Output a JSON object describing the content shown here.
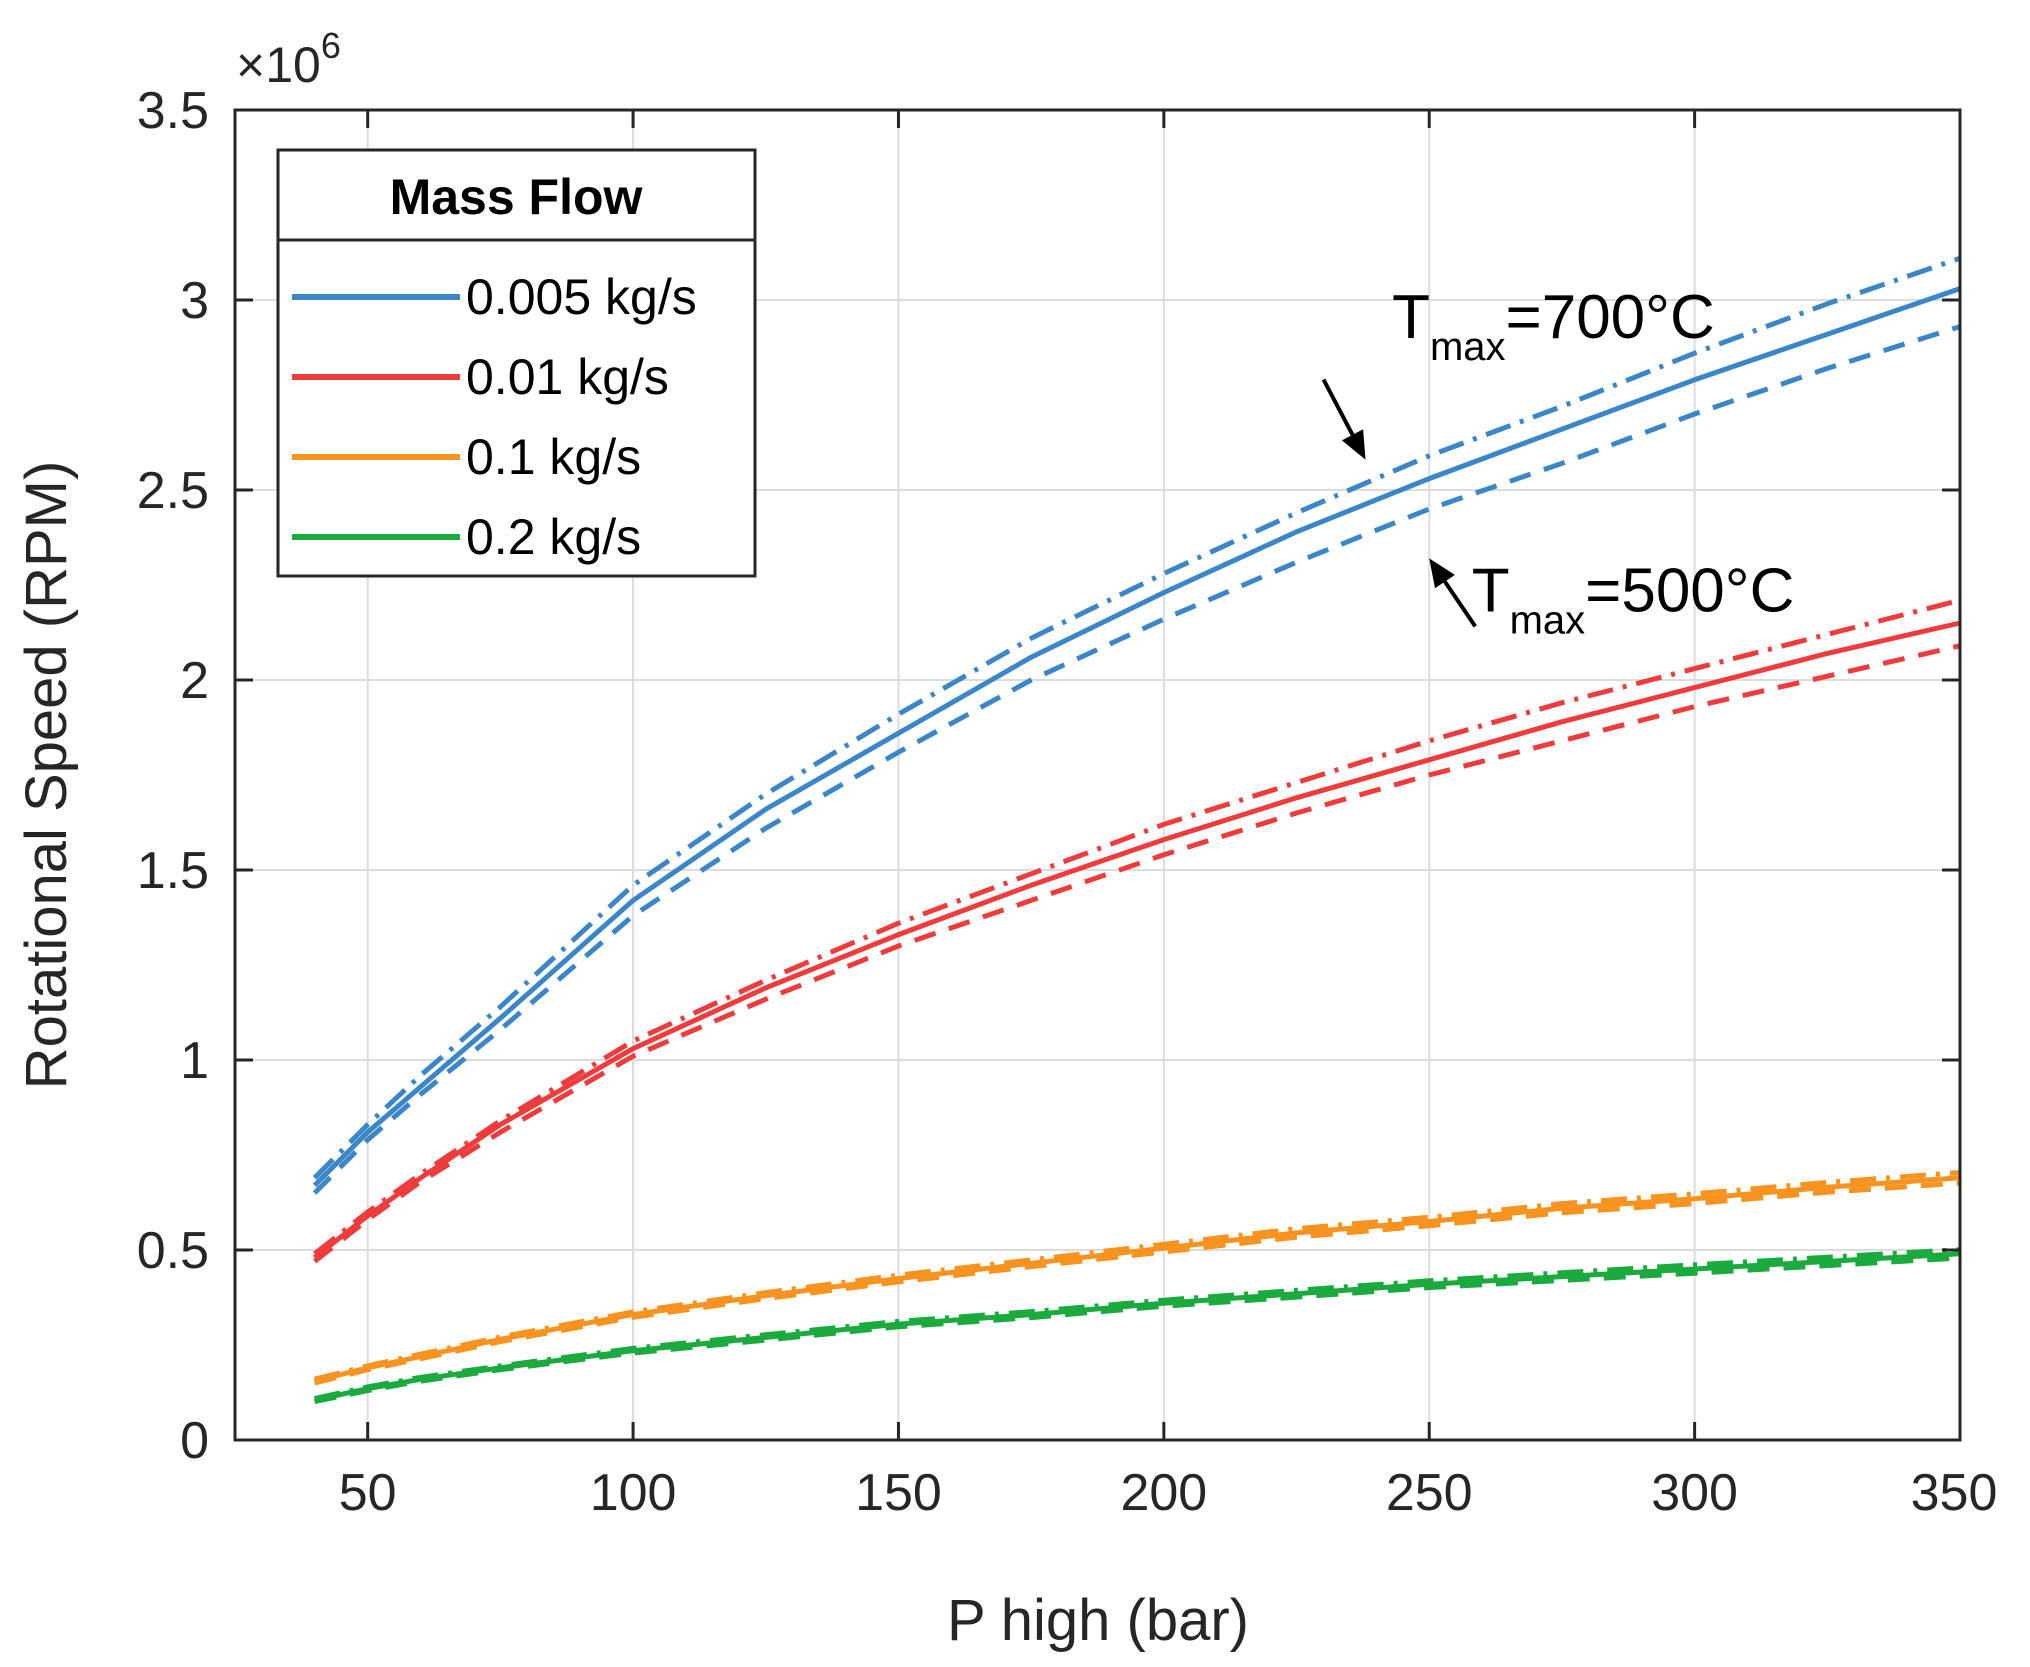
{
  "chart_data": {
    "type": "line",
    "title": "",
    "xlabel": "P high (bar)",
    "ylabel": "Rotational Speed (RPM)",
    "xlim": [
      25,
      350
    ],
    "ylim": [
      0,
      3500000
    ],
    "xticks": [
      50,
      100,
      150,
      200,
      250,
      300,
      350
    ],
    "yticks": [
      0,
      500000,
      1000000,
      1500000,
      2000000,
      2500000,
      3000000,
      3500000
    ],
    "ytick_labels": [
      "0",
      "0.5",
      "1",
      "1.5",
      "2",
      "2.5",
      "3",
      "3.5"
    ],
    "y_multiplier": {
      "base": "×10",
      "exponent": "6"
    },
    "grid": true,
    "legend": {
      "title": "Mass Flow",
      "position": "top-left",
      "entries": [
        "0.005 kg/s",
        "0.01 kg/s",
        "0.1 kg/s",
        "0.2 kg/s"
      ]
    },
    "line_styles": [
      "solid (reference)",
      "dash-dot (Tmax=700°C)",
      "dashed (Tmax=500°C)"
    ],
    "colors": [
      "#3a86c8",
      "#ee3b3b",
      "#f7931e",
      "#1aaa3e"
    ],
    "x": [
      40,
      50,
      60,
      75,
      100,
      125,
      150,
      175,
      200,
      225,
      250,
      275,
      300,
      325,
      350
    ],
    "series": [
      {
        "name": "0.005 kg/s",
        "style": "solid",
        "values": [
          670000,
          810000,
          930000,
          1110000,
          1420000,
          1660000,
          1860000,
          2060000,
          2230000,
          2390000,
          2530000,
          2660000,
          2790000,
          2910000,
          3030000
        ]
      },
      {
        "name": "0.005 kg/s",
        "style": "dashdot",
        "values": [
          690000,
          830000,
          960000,
          1140000,
          1460000,
          1700000,
          1910000,
          2110000,
          2280000,
          2440000,
          2590000,
          2720000,
          2860000,
          2990000,
          3110000
        ]
      },
      {
        "name": "0.005 kg/s",
        "style": "dashed",
        "values": [
          650000,
          790000,
          910000,
          1080000,
          1380000,
          1610000,
          1810000,
          2000000,
          2160000,
          2310000,
          2450000,
          2570000,
          2700000,
          2820000,
          2930000
        ]
      },
      {
        "name": "0.01 kg/s",
        "style": "solid",
        "values": [
          480000,
          590000,
          690000,
          830000,
          1030000,
          1190000,
          1330000,
          1460000,
          1580000,
          1690000,
          1790000,
          1890000,
          1980000,
          2070000,
          2150000
        ]
      },
      {
        "name": "0.01 kg/s",
        "style": "dashdot",
        "values": [
          490000,
          600000,
          700000,
          840000,
          1050000,
          1210000,
          1360000,
          1490000,
          1620000,
          1730000,
          1840000,
          1940000,
          2030000,
          2120000,
          2210000
        ]
      },
      {
        "name": "0.01 kg/s",
        "style": "dashed",
        "values": [
          470000,
          580000,
          680000,
          810000,
          1010000,
          1160000,
          1300000,
          1420000,
          1540000,
          1650000,
          1750000,
          1840000,
          1930000,
          2010000,
          2090000
        ]
      },
      {
        "name": "0.1 kg/s",
        "style": "solid",
        "values": [
          155000,
          190000,
          220000,
          265000,
          330000,
          380000,
          425000,
          465000,
          505000,
          545000,
          575000,
          610000,
          635000,
          665000,
          690000
        ]
      },
      {
        "name": "0.1 kg/s",
        "style": "dashdot",
        "values": [
          160000,
          195000,
          226000,
          271000,
          337000,
          388000,
          434000,
          474000,
          515000,
          556000,
          586000,
          622000,
          648000,
          678000,
          704000
        ]
      },
      {
        "name": "0.1 kg/s",
        "style": "dashed",
        "values": [
          150000,
          185000,
          214000,
          259000,
          323000,
          372000,
          416000,
          456000,
          495000,
          534000,
          564000,
          598000,
          622000,
          652000,
          676000
        ]
      },
      {
        "name": "0.2 kg/s",
        "style": "solid",
        "values": [
          105000,
          135000,
          160000,
          190000,
          235000,
          270000,
          305000,
          330000,
          360000,
          385000,
          410000,
          430000,
          450000,
          470000,
          490000
        ]
      },
      {
        "name": "0.2 kg/s",
        "style": "dashdot",
        "values": [
          109000,
          140000,
          165000,
          195000,
          241000,
          277000,
          312000,
          338000,
          368000,
          394000,
          419000,
          440000,
          461000,
          481000,
          501000
        ]
      },
      {
        "name": "0.2 kg/s",
        "style": "dashed",
        "values": [
          101000,
          130000,
          155000,
          185000,
          229000,
          263000,
          298000,
          322000,
          352000,
          376000,
          401000,
          420000,
          439000,
          459000,
          479000
        ]
      }
    ],
    "annotations": [
      {
        "main": "T",
        "sub": "max",
        "rest": "=700°C",
        "target": [
          238,
          2580000
        ],
        "text_at": [
          243,
          2900000
        ]
      },
      {
        "main": "T",
        "sub": "max",
        "rest": "=500°C",
        "target": [
          250,
          2320000
        ],
        "text_at": [
          258,
          2180000
        ]
      }
    ]
  }
}
